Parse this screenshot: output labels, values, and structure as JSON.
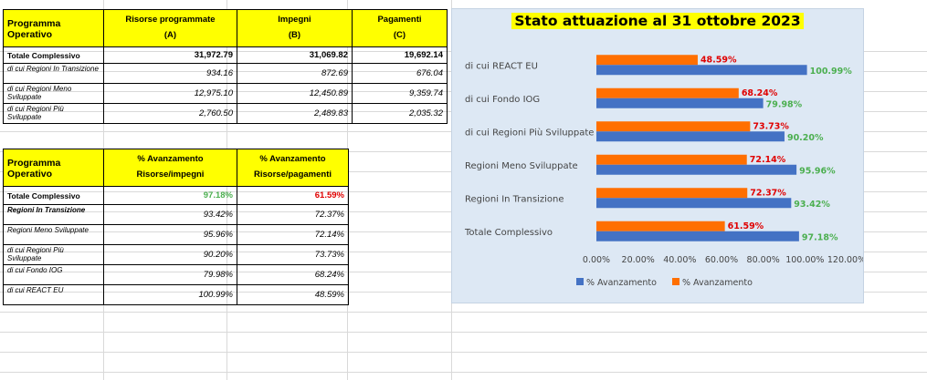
{
  "table1": {
    "header": {
      "name": [
        "Programma",
        "Operativo"
      ],
      "col_a": [
        "Risorse programmate",
        "(A)"
      ],
      "col_b": [
        "Impegni",
        "(B)"
      ],
      "col_c": [
        "Pagamenti",
        "(C)"
      ]
    },
    "rows": [
      {
        "label": "Totale Complessivo",
        "a": "31,972.79",
        "b": "31,069.82",
        "c": "19,692.14"
      },
      {
        "label": "di cui Regioni In Transizione",
        "a": "934.16",
        "b": "872.69",
        "c": "676.04"
      },
      {
        "label": "di cui Regioni Meno Sviluppate",
        "a": "12,975.10",
        "b": "12,450.89",
        "c": "9,359.74"
      },
      {
        "label": "di cui Regioni Più Sviluppate",
        "a": "2,760.50",
        "b": "2,489.83",
        "c": "2,035.32"
      }
    ]
  },
  "table2": {
    "header": {
      "name": [
        "Programma",
        "Operativo"
      ],
      "col_1": [
        "% Avanzamento",
        "Risorse/impegni"
      ],
      "col_2": [
        "% Avanzamento",
        "Risorse/pagamenti"
      ]
    },
    "rows": [
      {
        "label": "Totale Complessivo",
        "v1": "97.18%",
        "v2": "61.59%"
      },
      {
        "label": "Regioni In Transizione",
        "v1": "93.42%",
        "v2": "72.37%"
      },
      {
        "label": "Regioni Meno Sviluppate",
        "v1": "95.96%",
        "v2": "72.14%"
      },
      {
        "label": "di cui Regioni Più Sviluppate",
        "v1": "90.20%",
        "v2": "73.73%"
      },
      {
        "label": "di cui Fondo IOG",
        "v1": "79.98%",
        "v2": "68.24%"
      },
      {
        "label": "di cui REACT EU",
        "v1": "100.99%",
        "v2": "48.59%"
      }
    ]
  },
  "colors": {
    "header_fill": "#ffff00",
    "blue_series": "#4472c4",
    "orange_series": "#ff6f00",
    "blue_label": "#4caf50",
    "orange_label": "#e00000",
    "chart_background": "#dde8f4"
  },
  "chart_data": {
    "type": "bar",
    "orientation": "horizontal",
    "title": "Stato attuazione al 31 ottobre 2023",
    "categories": [
      "Totale Complessivo",
      "Regioni In Transizione",
      "Regioni Meno Sviluppate",
      "di cui Regioni Più Sviluppate",
      "di cui Fondo IOG",
      "di cui REACT EU"
    ],
    "series": [
      {
        "name": "% Avanzamento",
        "color": "#4472c4",
        "values": [
          97.18,
          93.42,
          95.96,
          90.2,
          79.98,
          100.99
        ],
        "labels": [
          "97.18%",
          "93.42%",
          "95.96%",
          "90.20%",
          "79.98%",
          "100.99%"
        ]
      },
      {
        "name": "% Avanzamento",
        "color": "#ff6f00",
        "values": [
          61.59,
          72.37,
          72.14,
          73.73,
          68.24,
          48.59
        ],
        "labels": [
          "61.59%",
          "72.37%",
          "72.14%",
          "73.73%",
          "68.24%",
          "48.59%"
        ]
      }
    ],
    "xlim": [
      0,
      120
    ],
    "xticks": [
      "0.00%",
      "20.00%",
      "40.00%",
      "60.00%",
      "80.00%",
      "100.00%",
      "120.00%"
    ],
    "grid": false,
    "legend": "bottom"
  }
}
